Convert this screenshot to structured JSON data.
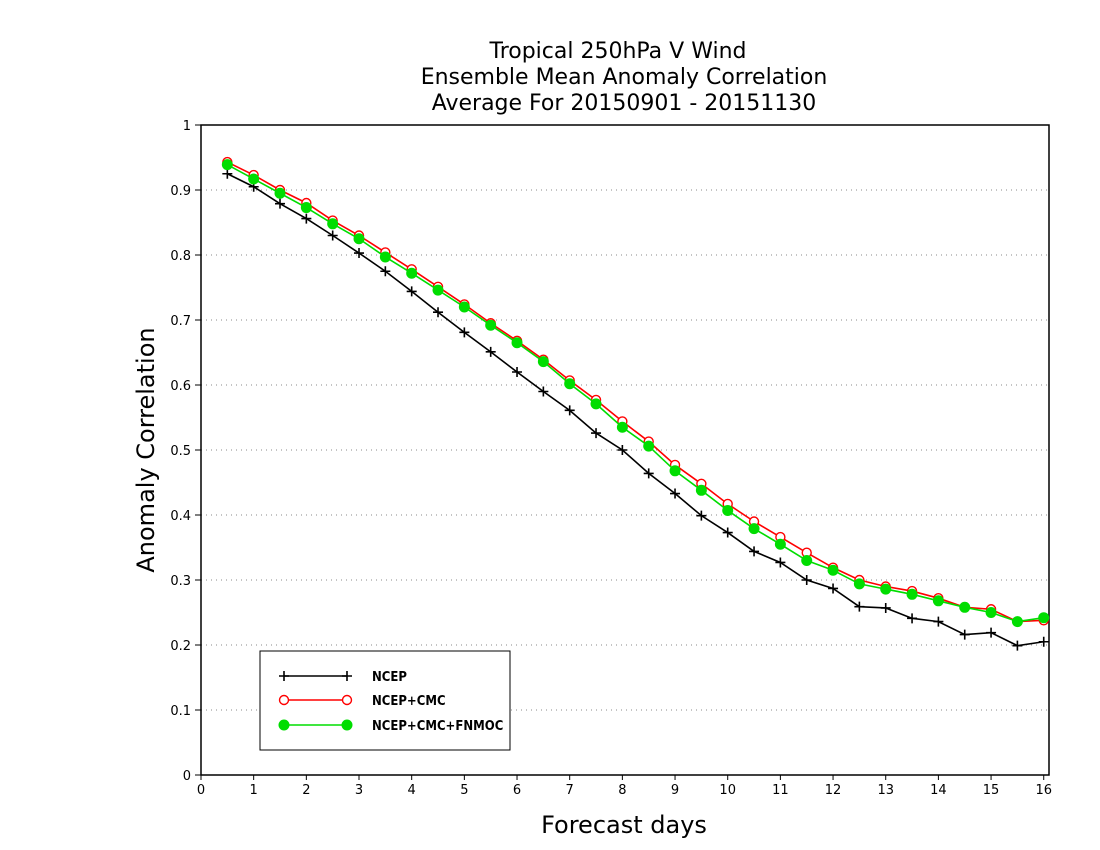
{
  "chart_data": {
    "type": "line",
    "title_lines": [
      "Tropical 250hPa V Wind",
      "Ensemble Mean Anomaly Correlation",
      "Average For 20150901 - 20151130"
    ],
    "xlabel": "Forecast days",
    "ylabel": "Anomaly Correlation",
    "xlim": [
      0,
      16.1
    ],
    "ylim": [
      0,
      1
    ],
    "x_ticks": [
      "0",
      "1",
      "2",
      "3",
      "4",
      "5",
      "6",
      "7",
      "8",
      "9",
      "10",
      "11",
      "12",
      "13",
      "14",
      "15",
      "16"
    ],
    "y_ticks": [
      "0",
      "0.1",
      "0.2",
      "0.3",
      "0.4",
      "0.5",
      "0.6",
      "0.7",
      "0.8",
      "0.9",
      "1"
    ],
    "grid": "horizontal dotted",
    "legend_position": "lower-left",
    "x": [
      0.5,
      1,
      1.5,
      2,
      2.5,
      3,
      3.5,
      4,
      4.5,
      5,
      5.5,
      6,
      6.5,
      7,
      7.5,
      8,
      8.5,
      9,
      9.5,
      10,
      10.5,
      11,
      11.5,
      12,
      12.5,
      13,
      13.5,
      14,
      14.5,
      15,
      15.5,
      16
    ],
    "series": [
      {
        "name": "NCEP",
        "color": "#000000",
        "marker": "plus",
        "values": [
          0.925,
          0.905,
          0.879,
          0.856,
          0.83,
          0.803,
          0.775,
          0.744,
          0.712,
          0.681,
          0.651,
          0.62,
          0.59,
          0.561,
          0.526,
          0.5,
          0.464,
          0.433,
          0.399,
          0.373,
          0.344,
          0.327,
          0.3,
          0.287,
          0.259,
          0.257,
          0.241,
          0.236,
          0.216,
          0.219,
          0.199,
          0.205
        ]
      },
      {
        "name": "NCEP+CMC",
        "color": "#ff0000",
        "marker": "open-circle",
        "values": [
          0.943,
          0.923,
          0.9,
          0.88,
          0.853,
          0.83,
          0.804,
          0.778,
          0.751,
          0.724,
          0.695,
          0.668,
          0.639,
          0.607,
          0.577,
          0.544,
          0.513,
          0.477,
          0.448,
          0.417,
          0.39,
          0.366,
          0.342,
          0.319,
          0.3,
          0.29,
          0.283,
          0.272,
          0.258,
          0.255,
          0.236,
          0.238
        ]
      },
      {
        "name": "NCEP+CMC+FNMOC",
        "color": "#00dd00",
        "marker": "filled-circle",
        "values": [
          0.939,
          0.917,
          0.895,
          0.873,
          0.848,
          0.825,
          0.797,
          0.772,
          0.746,
          0.72,
          0.692,
          0.665,
          0.636,
          0.602,
          0.571,
          0.535,
          0.506,
          0.468,
          0.438,
          0.407,
          0.379,
          0.355,
          0.33,
          0.315,
          0.294,
          0.286,
          0.278,
          0.268,
          0.258,
          0.25,
          0.236,
          0.242
        ]
      }
    ]
  }
}
